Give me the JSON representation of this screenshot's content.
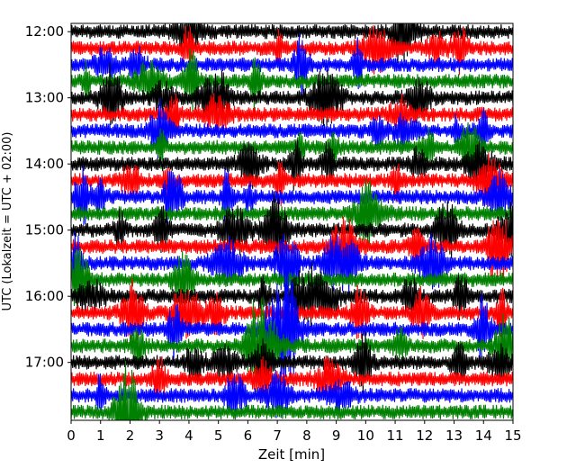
{
  "chart_data": {
    "type": "line",
    "title": "",
    "xlabel": "Zeit  [min]",
    "ylabel": "UTC (Lokalzeit = UTC + 02:00)",
    "xlim": [
      0,
      15
    ],
    "x_ticks": [
      0,
      1,
      2,
      3,
      4,
      5,
      6,
      7,
      8,
      9,
      10,
      11,
      12,
      13,
      14,
      15
    ],
    "x_tick_labels": [
      "0",
      "1",
      "2",
      "3",
      "4",
      "5",
      "6",
      "7",
      "8",
      "9",
      "10",
      "11",
      "12",
      "13",
      "14",
      "15"
    ],
    "y_start": "12:00",
    "y_end": "18:00",
    "trace_interval_minutes": 15,
    "y_tick_labels": [
      "12:00",
      "13:00",
      "14:00",
      "15:00",
      "16:00",
      "17:00"
    ],
    "y_inverted": true,
    "grid": false,
    "color_cycle": [
      "#000000",
      "#ff0000",
      "#0000ff",
      "#008000"
    ],
    "trace_starts": [
      "12:00",
      "12:15",
      "12:30",
      "12:45",
      "13:00",
      "13:15",
      "13:30",
      "13:45",
      "14:00",
      "14:15",
      "14:30",
      "14:45",
      "15:00",
      "15:15",
      "15:30",
      "15:45",
      "16:00",
      "16:15",
      "16:30",
      "16:45",
      "17:00",
      "17:15",
      "17:30",
      "17:45"
    ],
    "amplitude_scale": 0.45
  }
}
